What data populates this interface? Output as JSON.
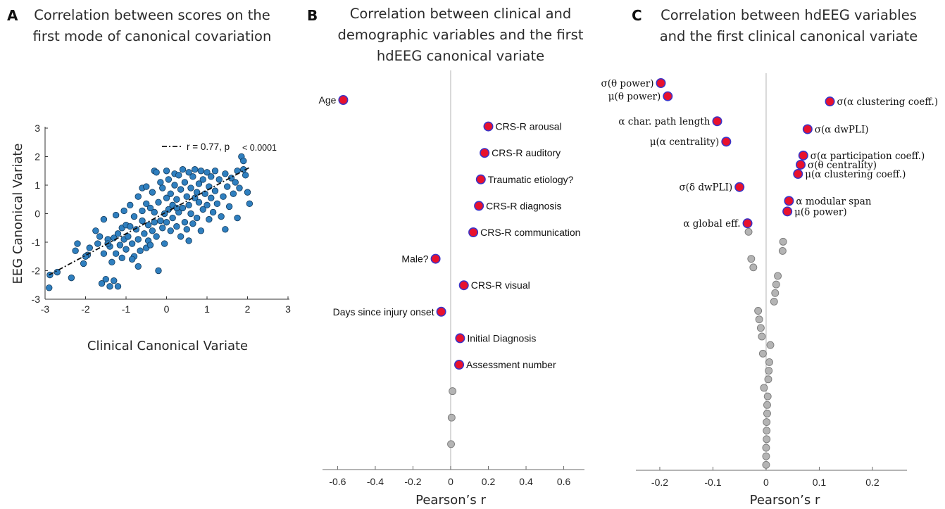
{
  "panel_letters": [
    "A",
    "B",
    "C"
  ],
  "panel_titles": [
    [
      "Correlation between scores on the",
      "first mode of canonical covariation"
    ],
    [
      "Correlation between clinical and",
      "demographic variables and the first",
      "hdEEG canonical variate"
    ],
    [
      "Correlation between hdEEG variables",
      "and the first clinical canonical variate"
    ]
  ],
  "colors": {
    "scatter_point": "#2f7fbf",
    "scatter_edge": "#123a5c",
    "highlight_fill": "#e8112d",
    "highlight_edge": "#3a34c8",
    "gray_fill": "#b4b4b4",
    "gray_edge": "#7a7a7a",
    "axis": "#6b6b6b",
    "zero_line": "#c8c8c8"
  },
  "chart_data": [
    {
      "type": "scatter",
      "panel": "A",
      "xlabel": "Clinical Canonical Variate",
      "ylabel": "EEG Canonical Variate",
      "xlim": [
        -3,
        3
      ],
      "ylim": [
        -3,
        3
      ],
      "xticks": [
        -3,
        -2,
        -1,
        0,
        1,
        2,
        3
      ],
      "yticks": [
        -3,
        -2,
        -1,
        0,
        1,
        2,
        3
      ],
      "fit_line": {
        "x": [
          -2.9,
          2.05
        ],
        "y": [
          -2.15,
          1.62
        ],
        "style": "dash-dot"
      },
      "legend": {
        "line_label": "r = 0.77, p",
        "p_value": "< 0.0001",
        "position": "top-right"
      },
      "points": [
        [
          -2.9,
          -2.6
        ],
        [
          -2.88,
          -2.15
        ],
        [
          -2.7,
          -2.05
        ],
        [
          -2.35,
          -2.25
        ],
        [
          -2.25,
          -1.3
        ],
        [
          -2.2,
          -1.05
        ],
        [
          -2.05,
          -1.75
        ],
        [
          -1.95,
          -1.45
        ],
        [
          -1.9,
          -1.2
        ],
        [
          -1.7,
          -1.05
        ],
        [
          -1.65,
          -0.8
        ],
        [
          -1.6,
          -2.45
        ],
        [
          -1.55,
          -1.4
        ],
        [
          -1.5,
          -2.3
        ],
        [
          -1.45,
          -0.9
        ],
        [
          -1.4,
          -2.55
        ],
        [
          -1.4,
          -1.15
        ],
        [
          -1.35,
          -1.7
        ],
        [
          -1.3,
          -0.85
        ],
        [
          -1.3,
          -2.35
        ],
        [
          -1.25,
          -1.4
        ],
        [
          -1.2,
          -0.7
        ],
        [
          -1.2,
          -2.55
        ],
        [
          -1.15,
          -1.1
        ],
        [
          -1.1,
          -0.5
        ],
        [
          -1.1,
          -1.55
        ],
        [
          -1.05,
          -0.9
        ],
        [
          -1.0,
          -0.4
        ],
        [
          -1.0,
          -1.25
        ],
        [
          -0.95,
          -0.8
        ],
        [
          -0.9,
          -0.45
        ],
        [
          -0.9,
          0.3
        ],
        [
          -0.85,
          -1.05
        ],
        [
          -0.8,
          -0.1
        ],
        [
          -0.8,
          -1.5
        ],
        [
          -0.75,
          -0.55
        ],
        [
          -0.7,
          -0.9
        ],
        [
          -0.7,
          0.6
        ],
        [
          -0.65,
          -1.3
        ],
        [
          -0.6,
          -0.25
        ],
        [
          -0.6,
          0.1
        ],
        [
          -0.55,
          -0.7
        ],
        [
          -0.5,
          -1.2
        ],
        [
          -0.5,
          0.35
        ],
        [
          -0.45,
          -0.4
        ],
        [
          -0.45,
          -0.95
        ],
        [
          -0.4,
          0.2
        ],
        [
          -0.4,
          -1.1
        ],
        [
          -0.35,
          -0.6
        ],
        [
          -0.35,
          0.75
        ],
        [
          -0.3,
          0.05
        ],
        [
          -0.3,
          -0.3
        ],
        [
          -0.3,
          1.5
        ],
        [
          -0.25,
          1.45
        ],
        [
          -0.25,
          -0.8
        ],
        [
          -0.2,
          -2.0
        ],
        [
          -0.2,
          0.4
        ],
        [
          -0.15,
          -0.25
        ],
        [
          -0.15,
          1.1
        ],
        [
          -0.1,
          -0.5
        ],
        [
          -0.1,
          0.9
        ],
        [
          -0.05,
          0.0
        ],
        [
          -0.05,
          -1.05
        ],
        [
          0.0,
          0.55
        ],
        [
          0.0,
          -0.3
        ],
        [
          0.05,
          1.2
        ],
        [
          0.05,
          0.15
        ],
        [
          0.1,
          -0.6
        ],
        [
          0.1,
          0.7
        ],
        [
          0.15,
          0.3
        ],
        [
          0.15,
          -0.15
        ],
        [
          0.2,
          1.0
        ],
        [
          0.2,
          1.4
        ],
        [
          0.25,
          -0.45
        ],
        [
          0.25,
          0.5
        ],
        [
          0.3,
          0.05
        ],
        [
          0.3,
          1.35
        ],
        [
          0.35,
          -0.8
        ],
        [
          0.35,
          0.85
        ],
        [
          0.4,
          1.55
        ],
        [
          0.4,
          0.2
        ],
        [
          0.45,
          -0.3
        ],
        [
          0.45,
          1.1
        ],
        [
          0.5,
          0.6
        ],
        [
          0.5,
          -0.55
        ],
        [
          0.55,
          1.45
        ],
        [
          0.55,
          0.3
        ],
        [
          0.6,
          0.0
        ],
        [
          0.6,
          0.9
        ],
        [
          0.65,
          1.3
        ],
        [
          0.65,
          -0.35
        ],
        [
          0.7,
          0.55
        ],
        [
          0.7,
          1.55
        ],
        [
          0.75,
          -0.15
        ],
        [
          0.75,
          0.75
        ],
        [
          0.8,
          1.05
        ],
        [
          0.8,
          0.4
        ],
        [
          0.85,
          1.5
        ],
        [
          0.85,
          -0.6
        ],
        [
          0.9,
          0.15
        ],
        [
          0.9,
          1.2
        ],
        [
          0.95,
          0.7
        ],
        [
          1.0,
          1.45
        ],
        [
          1.0,
          0.3
        ],
        [
          1.05,
          -0.2
        ],
        [
          1.05,
          0.95
        ],
        [
          1.1,
          1.3
        ],
        [
          1.1,
          0.55
        ],
        [
          1.15,
          0.05
        ],
        [
          1.2,
          1.5
        ],
        [
          1.2,
          0.8
        ],
        [
          1.25,
          0.35
        ],
        [
          1.3,
          1.2
        ],
        [
          1.35,
          -0.1
        ],
        [
          1.4,
          0.6
        ],
        [
          1.45,
          1.4
        ],
        [
          1.5,
          0.95
        ],
        [
          1.55,
          0.25
        ],
        [
          1.6,
          1.25
        ],
        [
          1.65,
          0.7
        ],
        [
          1.7,
          1.1
        ],
        [
          1.75,
          1.5
        ],
        [
          1.8,
          0.9
        ],
        [
          1.85,
          2.0
        ],
        [
          1.9,
          1.55
        ],
        [
          1.95,
          1.35
        ],
        [
          2.0,
          0.75
        ],
        [
          2.05,
          0.35
        ],
        [
          -1.75,
          -0.6
        ],
        [
          -1.55,
          -0.2
        ],
        [
          -1.25,
          -0.05
        ],
        [
          -1.05,
          0.1
        ],
        [
          -0.6,
          0.9
        ],
        [
          -0.5,
          0.95
        ],
        [
          0.0,
          1.5
        ],
        [
          0.25,
          0.2
        ],
        [
          0.55,
          -0.95
        ],
        [
          1.45,
          -0.55
        ],
        [
          1.75,
          -0.15
        ],
        [
          1.9,
          1.85
        ],
        [
          -0.85,
          -1.6
        ],
        [
          -0.7,
          -1.85
        ],
        [
          -1.45,
          -1.05
        ],
        [
          -2.0,
          -1.5
        ]
      ]
    },
    {
      "type": "scatter",
      "panel": "B",
      "xlabel": "Pearson’s r",
      "ylabel": "",
      "xlim": [
        -0.68,
        0.71
      ],
      "xticks": [
        -0.6,
        -0.4,
        -0.2,
        0,
        0.2,
        0.4,
        0.6
      ],
      "xtick_labels": [
        "-0.6",
        "-0.4",
        "-0.2",
        "0",
        "0.2",
        "0.4",
        "0.6"
      ],
      "points": [
        {
          "r": -0.57,
          "rank": 1,
          "label": "Age",
          "side": "left",
          "highlight": true
        },
        {
          "r": 0.2,
          "rank": 2,
          "label": "CRS-R arousal",
          "side": "right",
          "highlight": true
        },
        {
          "r": 0.18,
          "rank": 3,
          "label": "CRS-R auditory",
          "side": "right",
          "highlight": true
        },
        {
          "r": 0.16,
          "rank": 4,
          "label": "Traumatic etiology?",
          "side": "right",
          "highlight": true
        },
        {
          "r": 0.15,
          "rank": 5,
          "label": "CRS-R diagnosis",
          "side": "right",
          "highlight": true
        },
        {
          "r": 0.12,
          "rank": 6,
          "label": "CRS-R communication",
          "side": "right",
          "highlight": true
        },
        {
          "r": -0.08,
          "rank": 7,
          "label": "Male?",
          "side": "left",
          "highlight": true
        },
        {
          "r": 0.07,
          "rank": 8,
          "label": "CRS-R visual",
          "side": "right",
          "highlight": true
        },
        {
          "r": -0.05,
          "rank": 9,
          "label": "Days since injury onset",
          "side": "left",
          "highlight": true
        },
        {
          "r": 0.05,
          "rank": 10,
          "label": "Initial Diagnosis",
          "side": "right",
          "highlight": true
        },
        {
          "r": 0.045,
          "rank": 11,
          "label": "Assessment number",
          "side": "right",
          "highlight": true
        },
        {
          "r": 0.01,
          "rank": 12,
          "label": "",
          "side": "right",
          "highlight": false
        },
        {
          "r": 0.005,
          "rank": 13,
          "label": "",
          "side": "right",
          "highlight": false
        },
        {
          "r": 0.002,
          "rank": 14,
          "label": "",
          "side": "right",
          "highlight": false
        }
      ]
    },
    {
      "type": "scatter",
      "panel": "C",
      "xlabel": "Pearson’s r",
      "ylabel": "",
      "xlim": [
        -0.245,
        0.265
      ],
      "xticks": [
        -0.2,
        -0.1,
        0,
        0.1,
        0.2
      ],
      "xtick_labels": [
        "-0.2",
        "-0.1",
        "0",
        "0.1",
        "0.2"
      ],
      "points": [
        {
          "r": -0.198,
          "rank": 1,
          "label": "σ(θ power)",
          "side": "left",
          "highlight": true
        },
        {
          "r": -0.185,
          "rank": 2,
          "label": "μ(θ power)",
          "side": "left",
          "highlight": true
        },
        {
          "r": 0.12,
          "rank": 2.4,
          "label": "σ(α clustering coeff.)",
          "side": "right",
          "highlight": true
        },
        {
          "r": -0.092,
          "rank": 3.9,
          "label": "α char. path length",
          "side": "left",
          "highlight": true
        },
        {
          "r": 0.078,
          "rank": 4.5,
          "label": "σ(α dwPLI)",
          "side": "right",
          "highlight": true
        },
        {
          "r": -0.075,
          "rank": 5.45,
          "label": "μ(α centrality)",
          "side": "left",
          "highlight": true
        },
        {
          "r": 0.07,
          "rank": 6.5,
          "label": "σ(α participation coeff.)",
          "side": "right",
          "highlight": true
        },
        {
          "r": 0.065,
          "rank": 7.2,
          "label": "σ(θ centrality)",
          "side": "right",
          "highlight": true
        },
        {
          "r": 0.06,
          "rank": 7.9,
          "label": "μ(α clustering coeff.)",
          "side": "right",
          "highlight": true
        },
        {
          "r": -0.05,
          "rank": 8.9,
          "label": "σ(δ dwPLI)",
          "side": "left",
          "highlight": true
        },
        {
          "r": 0.043,
          "rank": 9.95,
          "label": "α modular span",
          "side": "right",
          "highlight": true
        },
        {
          "r": 0.04,
          "rank": 10.75,
          "label": "μ(δ power)",
          "side": "right",
          "highlight": true
        },
        {
          "r": -0.035,
          "rank": 11.65,
          "label": "α global eff.",
          "side": "left",
          "highlight": true
        },
        {
          "r": -0.033,
          "rank": 12.3,
          "label": "",
          "side": "right",
          "highlight": false
        },
        {
          "r": 0.032,
          "rank": 13.05,
          "label": "",
          "side": "right",
          "highlight": false
        },
        {
          "r": 0.031,
          "rank": 13.75,
          "label": "",
          "side": "right",
          "highlight": false
        },
        {
          "r": -0.028,
          "rank": 14.35,
          "label": "",
          "side": "right",
          "highlight": false
        },
        {
          "r": -0.024,
          "rank": 15.0,
          "label": "",
          "side": "right",
          "highlight": false
        },
        {
          "r": 0.022,
          "rank": 15.65,
          "label": "",
          "side": "right",
          "highlight": false
        },
        {
          "r": 0.019,
          "rank": 16.3,
          "label": "",
          "side": "right",
          "highlight": false
        },
        {
          "r": 0.017,
          "rank": 16.95,
          "label": "",
          "side": "right",
          "highlight": false
        },
        {
          "r": 0.015,
          "rank": 17.6,
          "label": "",
          "side": "right",
          "highlight": false
        },
        {
          "r": -0.015,
          "rank": 18.3,
          "label": "",
          "side": "right",
          "highlight": false
        },
        {
          "r": -0.013,
          "rank": 18.95,
          "label": "",
          "side": "right",
          "highlight": false
        },
        {
          "r": -0.01,
          "rank": 19.6,
          "label": "",
          "side": "right",
          "highlight": false
        },
        {
          "r": -0.008,
          "rank": 20.25,
          "label": "",
          "side": "right",
          "highlight": false
        },
        {
          "r": 0.008,
          "rank": 20.9,
          "label": "",
          "side": "right",
          "highlight": false
        },
        {
          "r": -0.006,
          "rank": 21.55,
          "label": "",
          "side": "right",
          "highlight": false
        },
        {
          "r": 0.006,
          "rank": 22.2,
          "label": "",
          "side": "right",
          "highlight": false
        },
        {
          "r": 0.005,
          "rank": 22.85,
          "label": "",
          "side": "right",
          "highlight": false
        },
        {
          "r": 0.004,
          "rank": 23.5,
          "label": "",
          "side": "right",
          "highlight": false
        },
        {
          "r": -0.004,
          "rank": 24.15,
          "label": "",
          "side": "right",
          "highlight": false
        },
        {
          "r": 0.003,
          "rank": 24.8,
          "label": "",
          "side": "right",
          "highlight": false
        },
        {
          "r": 0.002,
          "rank": 25.45,
          "label": "",
          "side": "right",
          "highlight": false
        },
        {
          "r": 0.002,
          "rank": 26.1,
          "label": "",
          "side": "right",
          "highlight": false
        },
        {
          "r": 0.001,
          "rank": 26.75,
          "label": "",
          "side": "right",
          "highlight": false
        },
        {
          "r": 0.001,
          "rank": 27.4,
          "label": "",
          "side": "right",
          "highlight": false
        },
        {
          "r": 0.001,
          "rank": 28.05,
          "label": "",
          "side": "right",
          "highlight": false
        },
        {
          "r": 0.0,
          "rank": 28.7,
          "label": "",
          "side": "right",
          "highlight": false
        },
        {
          "r": 0.0,
          "rank": 29.35,
          "label": "",
          "side": "right",
          "highlight": false
        },
        {
          "r": 0.0,
          "rank": 30.0,
          "label": "",
          "side": "right",
          "highlight": false
        }
      ]
    }
  ]
}
